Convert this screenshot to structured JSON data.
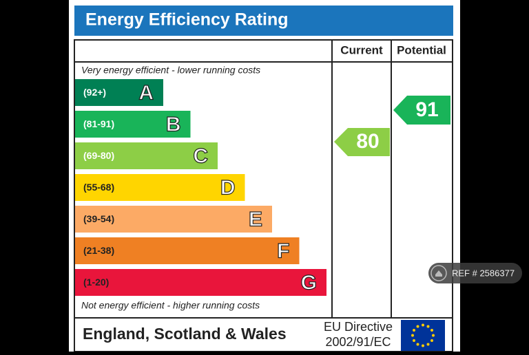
{
  "header": {
    "title": "Energy Efficiency Rating"
  },
  "columns": {
    "current": "Current",
    "potential": "Potential"
  },
  "top_note": "Very energy efficient - lower running costs",
  "bottom_note": "Not energy efficient - higher running costs",
  "bands": [
    {
      "range": "(92+)",
      "letter": "A",
      "color": "#008054"
    },
    {
      "range": "(81-91)",
      "letter": "B",
      "color": "#19b459"
    },
    {
      "range": "(69-80)",
      "letter": "C",
      "color": "#8dce46"
    },
    {
      "range": "(55-68)",
      "letter": "D",
      "color": "#ffd500"
    },
    {
      "range": "(39-54)",
      "letter": "E",
      "color": "#fcaa65"
    },
    {
      "range": "(21-38)",
      "letter": "F",
      "color": "#ef8023"
    },
    {
      "range": "(1-20)",
      "letter": "G",
      "color": "#e9153b"
    }
  ],
  "ratings": {
    "current": {
      "value": 80,
      "color": "#8dce46"
    },
    "potential": {
      "value": 91,
      "color": "#19b459"
    }
  },
  "footer": {
    "region": "England, Scotland & Wales",
    "directive_line1": "EU Directive",
    "directive_line2": "2002/91/EC"
  },
  "overlay": {
    "ref": "REF # 2586377"
  }
}
